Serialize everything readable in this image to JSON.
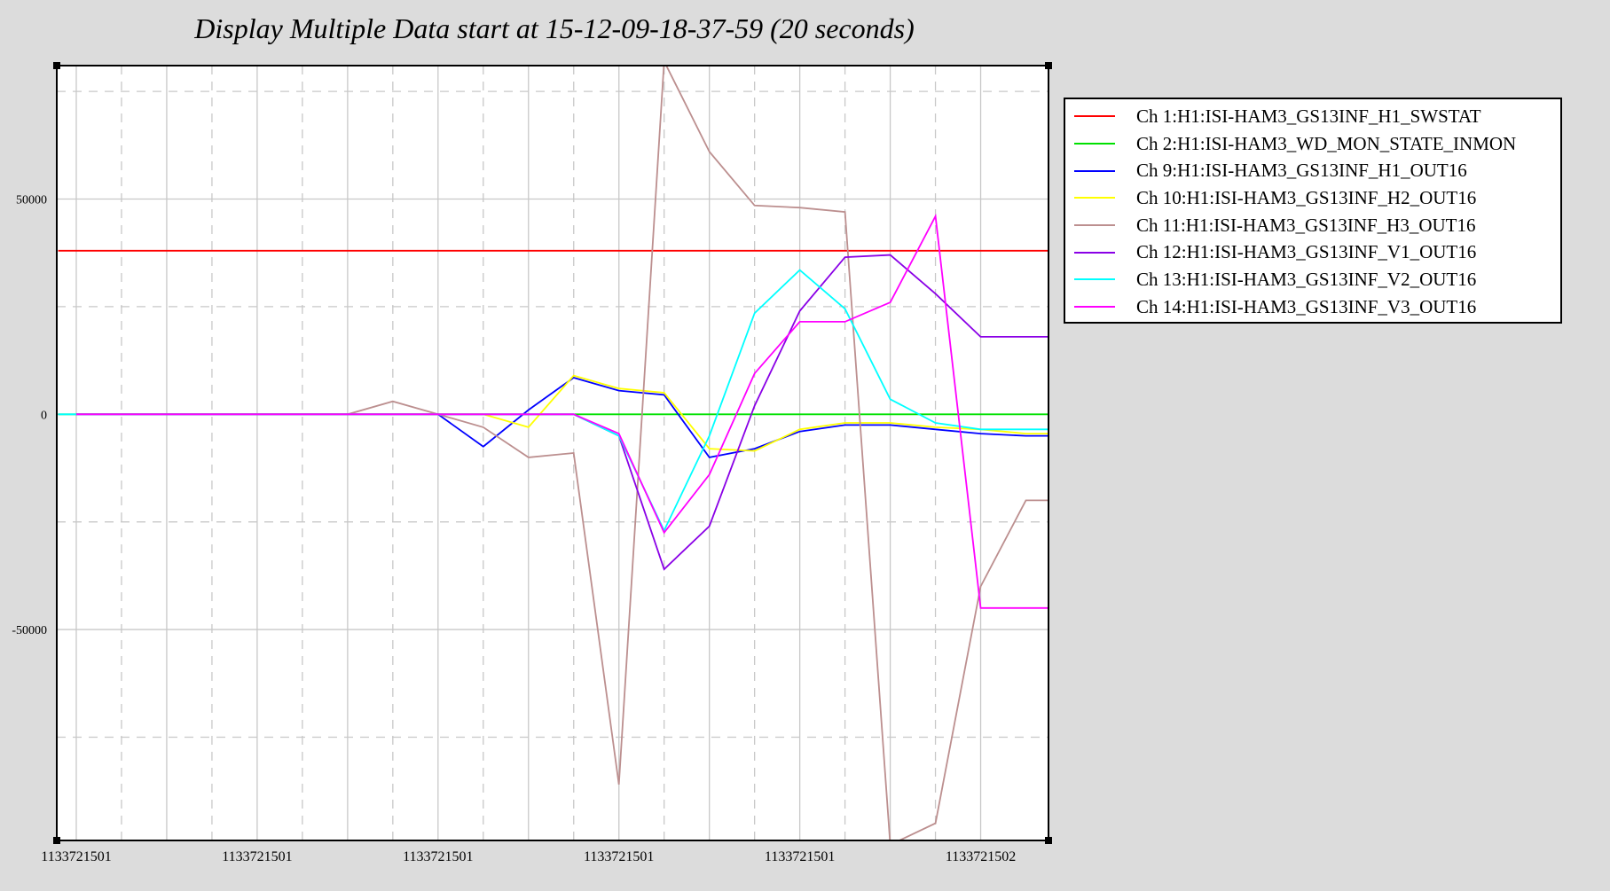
{
  "chart_data": {
    "type": "line",
    "title": "Display Multiple Data start at 15-12-09-18-37-59 (20 seconds)",
    "xlabel": "",
    "ylabel": "",
    "ylim": [
      -99000,
      81000
    ],
    "y_ticks": [
      {
        "value": 50000,
        "label": "50000"
      },
      {
        "value": 0,
        "label": "0"
      },
      {
        "value": -50000,
        "label": "-50000"
      }
    ],
    "y_grid_solid": [
      50000,
      0,
      -50000
    ],
    "y_grid_dashed": [
      75000,
      25000,
      -25000,
      -75000
    ],
    "x_tick_labels": [
      "1133721501",
      "1133721501",
      "1133721501",
      "1133721501",
      "1133721501",
      "1133721502"
    ],
    "x_tick_slots": [
      0,
      4,
      8,
      12,
      16,
      20
    ],
    "x_slots": 21.5,
    "grid": true,
    "legend_position": "right",
    "series": [
      {
        "name": "Ch 1:H1:ISI-HAM3_GS13INF_H1_SWSTAT",
        "color": "#ff0000",
        "x": [
          -0.4,
          21.5
        ],
        "y": [
          38000,
          38000
        ]
      },
      {
        "name": "Ch 2:H1:ISI-HAM3_WD_MON_STATE_INMON",
        "color": "#00e000",
        "x": [
          -0.4,
          21.5
        ],
        "y": [
          0,
          0
        ]
      },
      {
        "name": "Ch 9:H1:ISI-HAM3_GS13INF_H1_OUT16",
        "color": "#0000ff",
        "x": [
          0,
          1,
          2,
          3,
          4,
          5,
          6,
          7,
          8,
          9,
          10,
          11,
          12,
          13,
          14,
          15,
          16,
          17,
          18,
          19,
          20,
          21,
          21.5
        ],
        "y": [
          0,
          0,
          0,
          0,
          0,
          0,
          0,
          0,
          0,
          -7500,
          1000,
          8500,
          5500,
          4500,
          -10000,
          -8000,
          -4000,
          -2500,
          -2500,
          -3500,
          -4500,
          -5000,
          -5000
        ]
      },
      {
        "name": "Ch 10:H1:ISI-HAM3_GS13INF_H2_OUT16",
        "color": "#ffff00",
        "x": [
          0,
          1,
          2,
          3,
          4,
          5,
          6,
          7,
          8,
          9,
          10,
          11,
          12,
          13,
          14,
          15,
          16,
          17,
          18,
          19,
          20,
          21,
          21.5
        ],
        "y": [
          0,
          0,
          0,
          0,
          0,
          0,
          0,
          0,
          0,
          0,
          -3000,
          9000,
          6000,
          5000,
          -8000,
          -8500,
          -3500,
          -2000,
          -2000,
          -3000,
          -3500,
          -4500,
          -4500
        ]
      },
      {
        "name": "Ch 11:H1:ISI-HAM3_GS13INF_H3_OUT16",
        "color": "#bc8f8f",
        "x": [
          0,
          1,
          2,
          3,
          4,
          5,
          6,
          7,
          8,
          9,
          10,
          11,
          12,
          13,
          14,
          15,
          16,
          17,
          18,
          19,
          20,
          21,
          21.5
        ],
        "y": [
          0,
          0,
          0,
          0,
          0,
          0,
          0,
          3000,
          0,
          -3000,
          -10000,
          -9000,
          -86000,
          82000,
          61000,
          48500,
          48000,
          47000,
          -100000,
          -95000,
          -40000,
          -20000,
          -20000
        ]
      },
      {
        "name": "Ch 12:H1:ISI-HAM3_GS13INF_V1_OUT16",
        "color": "#8a00e6",
        "x": [
          0,
          1,
          2,
          3,
          4,
          5,
          6,
          7,
          8,
          9,
          10,
          11,
          12,
          13,
          14,
          15,
          16,
          17,
          18,
          19,
          20,
          21,
          21.5
        ],
        "y": [
          0,
          0,
          0,
          0,
          0,
          0,
          0,
          0,
          0,
          0,
          0,
          0,
          -5000,
          -36000,
          -26000,
          2000,
          24000,
          36500,
          37000,
          28000,
          18000,
          18000,
          18000
        ]
      },
      {
        "name": "Ch 13:H1:ISI-HAM3_GS13INF_V2_OUT16",
        "color": "#00ffff",
        "x": [
          -0.4,
          0,
          1,
          2,
          3,
          4,
          5,
          6,
          7,
          8,
          9,
          10,
          11,
          12,
          13,
          14,
          15,
          16,
          17,
          18,
          19,
          20,
          21,
          21.5
        ],
        "y": [
          0,
          0,
          0,
          0,
          0,
          0,
          0,
          0,
          0,
          0,
          0,
          0,
          0,
          -5000,
          -27000,
          -5000,
          23500,
          33500,
          24500,
          3500,
          -2000,
          -3500,
          -3500,
          -3500
        ]
      },
      {
        "name": "Ch 14:H1:ISI-HAM3_GS13INF_V3_OUT16",
        "color": "#ff00ff",
        "x": [
          0,
          1,
          2,
          3,
          4,
          5,
          6,
          7,
          8,
          9,
          10,
          11,
          12,
          13,
          14,
          15,
          16,
          17,
          18,
          19,
          20,
          21,
          21.5
        ],
        "y": [
          0,
          0,
          0,
          0,
          0,
          0,
          0,
          0,
          0,
          0,
          0,
          0,
          -4500,
          -27500,
          -14000,
          9500,
          21500,
          21500,
          26000,
          46000,
          -45000,
          -45000,
          -45000
        ]
      }
    ]
  }
}
